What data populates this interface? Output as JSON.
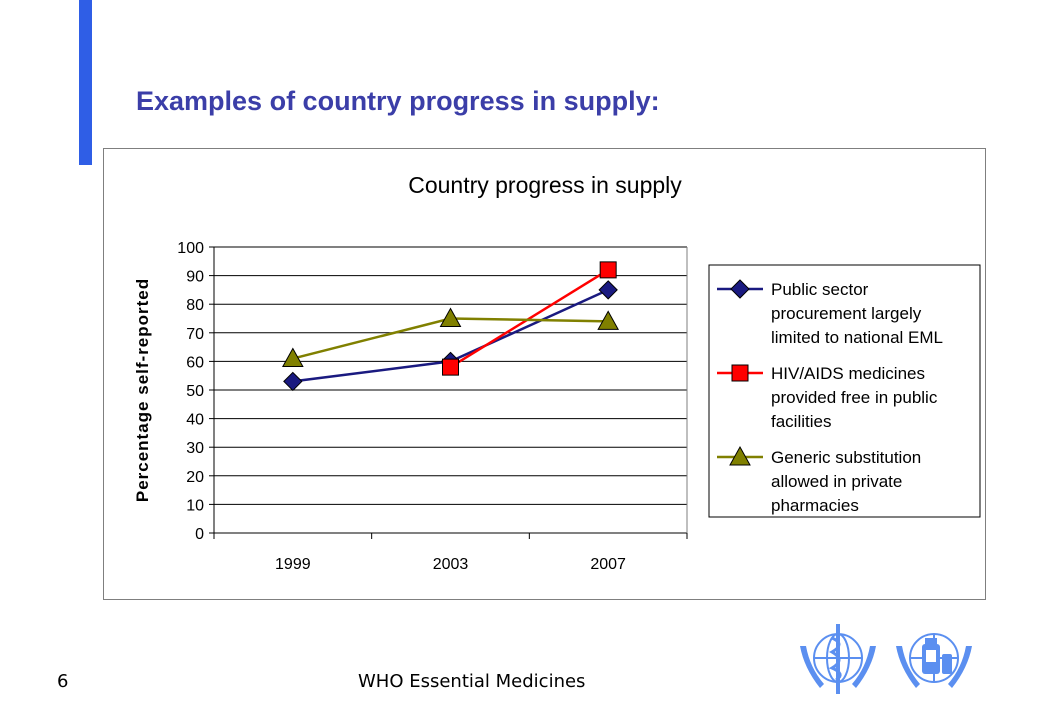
{
  "slide": {
    "title": "Examples of country progress in supply:",
    "page_number": "6",
    "footer_text": "WHO Essential Medicines"
  },
  "colors": {
    "accent_bar": "#2f5ee6",
    "title": "#3b3ea8",
    "logo": "#5b8ff0"
  },
  "logos": [
    "who-emblem-icon",
    "who-medicines-emblem-icon"
  ],
  "chart_data": {
    "type": "line",
    "title": "Country progress in supply",
    "xlabel": "",
    "ylabel": "Percentage self-reported",
    "categories": [
      "1999",
      "2003",
      "2007"
    ],
    "ylim": [
      0,
      100
    ],
    "yticks": [
      0,
      10,
      20,
      30,
      40,
      50,
      60,
      70,
      80,
      90,
      100
    ],
    "grid": "horizontal",
    "legend_position": "right",
    "series": [
      {
        "name": "Public sector procurement largely limited to national EML",
        "legend_lines": [
          "Public sector",
          "procurement largely",
          "limited to national EML"
        ],
        "values": [
          53,
          60,
          85
        ],
        "color": "#1a1a80",
        "marker": "diamond"
      },
      {
        "name": "HIV/AIDS medicines provided free in public facilities",
        "legend_lines": [
          "HIV/AIDS medicines",
          "provided free in public",
          "facilities"
        ],
        "values": [
          null,
          58,
          92
        ],
        "color": "#ff0000",
        "marker": "square"
      },
      {
        "name": "Generic substitution allowed in private pharmacies",
        "legend_lines": [
          "Generic substitution",
          "allowed in private",
          "pharmacies"
        ],
        "values": [
          61,
          75,
          74
        ],
        "color": "#808000",
        "marker": "triangle"
      }
    ]
  }
}
